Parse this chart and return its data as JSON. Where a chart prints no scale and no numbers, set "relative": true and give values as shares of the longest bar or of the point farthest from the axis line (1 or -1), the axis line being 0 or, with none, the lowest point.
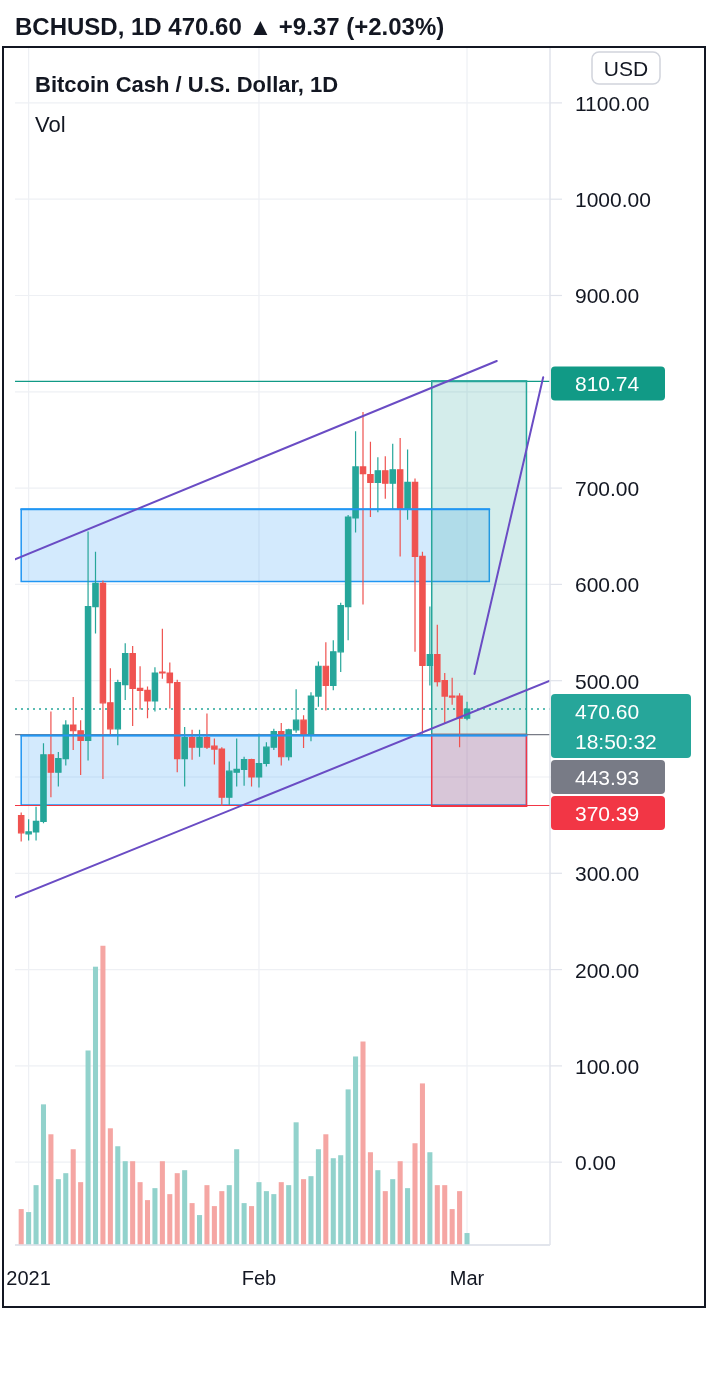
{
  "chart_data": [
    {
      "type": "candlestick",
      "title": "BCHUSD, 1D 470.60 ▲ +9.37 (+2.03%)",
      "subtitle": "Bitcoin Cash / U.S. Dollar, 1D",
      "ylabel": "USD",
      "x": [
        "2020-12-31",
        "2021-01-01",
        "2021-01-02",
        "2021-01-03",
        "2021-01-04",
        "2021-01-05",
        "2021-01-06",
        "2021-01-07",
        "2021-01-08",
        "2021-01-09",
        "2021-01-10",
        "2021-01-11",
        "2021-01-12",
        "2021-01-13",
        "2021-01-14",
        "2021-01-15",
        "2021-01-16",
        "2021-01-17",
        "2021-01-18",
        "2021-01-19",
        "2021-01-20",
        "2021-01-21",
        "2021-01-22",
        "2021-01-23",
        "2021-01-24",
        "2021-01-25",
        "2021-01-26",
        "2021-01-27",
        "2021-01-28",
        "2021-01-29",
        "2021-01-30",
        "2021-01-31",
        "2021-02-01",
        "2021-02-02",
        "2021-02-03",
        "2021-02-04",
        "2021-02-05",
        "2021-02-06",
        "2021-02-07",
        "2021-02-08",
        "2021-02-09",
        "2021-02-10",
        "2021-02-11",
        "2021-02-12",
        "2021-02-13",
        "2021-02-14",
        "2021-02-15",
        "2021-02-16",
        "2021-02-17",
        "2021-02-18",
        "2021-02-19",
        "2021-02-20",
        "2021-02-21",
        "2021-02-22",
        "2021-02-23",
        "2021-02-24",
        "2021-02-25",
        "2021-02-26",
        "2021-02-27",
        "2021-02-28",
        "2021-03-01"
      ],
      "ohlc": [
        [
          360,
          363,
          333,
          342
        ],
        [
          341,
          356,
          334,
          343
        ],
        [
          343,
          369,
          334,
          354
        ],
        [
          354,
          435,
          352,
          423
        ],
        [
          423,
          468,
          379,
          405
        ],
        [
          405,
          426,
          390,
          419
        ],
        [
          419,
          459,
          412,
          454
        ],
        [
          454,
          483,
          428,
          448
        ],
        [
          448,
          459,
          402,
          438
        ],
        [
          438,
          655,
          417,
          577
        ],
        [
          577,
          634,
          549,
          601
        ],
        [
          601,
          604,
          398,
          477
        ],
        [
          477,
          513,
          443,
          450
        ],
        [
          450,
          501,
          433,
          498
        ],
        [
          496,
          539,
          480,
          528
        ],
        [
          528,
          536,
          453,
          492
        ],
        [
          492,
          515,
          470,
          490
        ],
        [
          490,
          494,
          461,
          479
        ],
        [
          479,
          514,
          468,
          508
        ],
        [
          509,
          554,
          502,
          508
        ],
        [
          508,
          519,
          471,
          498
        ],
        [
          498,
          501,
          405,
          419
        ],
        [
          419,
          452,
          390,
          441
        ],
        [
          441,
          449,
          418,
          431
        ],
        [
          431,
          449,
          421,
          441
        ],
        [
          441,
          466,
          429,
          431
        ],
        [
          432,
          440,
          413,
          429
        ],
        [
          429,
          431,
          370,
          379
        ],
        [
          379,
          416,
          371,
          406
        ],
        [
          405,
          440,
          390,
          408
        ],
        [
          408,
          421,
          391,
          418
        ],
        [
          418,
          419,
          390,
          400
        ],
        [
          400,
          445,
          389,
          414
        ],
        [
          414,
          436,
          411,
          431
        ],
        [
          431,
          450,
          428,
          447
        ],
        [
          447,
          456,
          412,
          421
        ],
        [
          421,
          450,
          417,
          449
        ],
        [
          449,
          491,
          446,
          459
        ],
        [
          459,
          464,
          430,
          445
        ],
        [
          445,
          488,
          437,
          484
        ],
        [
          484,
          520,
          473,
          515
        ],
        [
          515,
          540,
          469,
          495
        ],
        [
          495,
          542,
          490,
          530
        ],
        [
          530,
          581,
          509,
          578
        ],
        [
          577,
          672,
          542,
          670
        ],
        [
          669,
          759,
          654,
          722
        ],
        [
          722,
          779,
          579,
          715
        ],
        [
          714,
          748,
          670,
          706
        ],
        [
          706,
          732,
          675,
          718
        ],
        [
          718,
          733,
          689,
          705
        ],
        [
          705,
          746,
          678,
          719
        ],
        [
          719,
          752,
          629,
          678
        ],
        [
          678,
          740,
          667,
          706
        ],
        [
          706,
          710,
          530,
          629
        ],
        [
          629,
          634,
          445,
          516
        ],
        [
          516,
          577,
          495,
          527
        ],
        [
          527,
          558,
          494,
          499
        ],
        [
          500,
          508,
          456,
          484
        ],
        [
          484,
          503,
          475,
          483
        ],
        [
          484,
          487,
          431,
          461
        ],
        [
          461,
          478,
          459,
          470.6
        ]
      ],
      "colors": [
        "#ef5350",
        "#26a69a",
        "#26a69a",
        "#26a69a",
        "#ef5350",
        "#26a69a",
        "#26a69a",
        "#ef5350",
        "#ef5350",
        "#26a69a",
        "#26a69a",
        "#ef5350",
        "#ef5350",
        "#26a69a",
        "#26a69a",
        "#ef5350",
        "#ef5350",
        "#ef5350",
        "#26a69a",
        "#ef5350",
        "#ef5350",
        "#ef5350",
        "#26a69a",
        "#ef5350",
        "#26a69a",
        "#ef5350",
        "#ef5350",
        "#ef5350",
        "#26a69a",
        "#26a69a",
        "#26a69a",
        "#ef5350",
        "#26a69a",
        "#26a69a",
        "#26a69a",
        "#ef5350",
        "#26a69a",
        "#26a69a",
        "#ef5350",
        "#26a69a",
        "#26a69a",
        "#ef5350",
        "#26a69a",
        "#26a69a",
        "#26a69a",
        "#26a69a",
        "#ef5350",
        "#ef5350",
        "#26a69a",
        "#ef5350",
        "#26a69a",
        "#ef5350",
        "#26a69a",
        "#ef5350",
        "#ef5350",
        "#26a69a",
        "#ef5350",
        "#ef5350",
        "#ef5350",
        "#ef5350",
        "#26a69a"
      ],
      "series": [
        {
          "type": "line",
          "x": [
            "2020-12-31",
            "2021-03-04"
          ],
          "values": [
            678,
            678
          ],
          "lower": [
            603,
            603
          ],
          "upper": [
            678,
            678
          ],
          "color": "#2196f3"
        },
        {
          "type": "line",
          "x": [
            "2020-12-31",
            "2021-03-09"
          ],
          "values": [
            443,
            443
          ],
          "lower": [
            371,
            371
          ],
          "upper": [
            443,
            443
          ],
          "color": "#2196f3"
        },
        {
          "type": "line",
          "x": [
            "2021-02-24T06:00",
            "2021-03-09"
          ],
          "values": [
            811,
            811
          ],
          "lower": [
            444,
            444
          ],
          "upper": [
            811,
            811
          ],
          "color": "#26a69a"
        },
        {
          "type": "line",
          "x": [
            "2021-02-24T06:00",
            "2021-03-09"
          ],
          "values": [
            370,
            370
          ],
          "lower": [
            370,
            370
          ],
          "upper": [
            444,
            444
          ],
          "color": "#f23645"
        },
        {
          "type": "line",
          "x": [
            "2020-12-30T04:00",
            "2021-03-05"
          ],
          "values": [
            626,
            832
          ],
          "color": "#6a4cc4"
        },
        {
          "type": "line",
          "x": [
            "2020-12-30T04:00",
            "2021-03-12T04:00"
          ],
          "values": [
            275,
            500
          ],
          "color": "#6a4cc4"
        },
        {
          "type": "line",
          "x": [
            "2021-03-02",
            "2021-03-11T06:00"
          ],
          "values": [
            507,
            815
          ],
          "color": "#6a4cc4"
        }
      ],
      "xlim": [
        "2020-12-30T04:00",
        "2021-03-12T04:00"
      ],
      "xticks": [
        {
          "value": "2021-01-01",
          "label": "2021"
        },
        {
          "value": "2021-02-01",
          "label": "Feb"
        },
        {
          "value": "2021-03-01",
          "label": "Mar"
        }
      ],
      "ylim": [
        -86,
        1157
      ],
      "yticks": [
        {
          "value": 0,
          "label": "0.00"
        },
        {
          "value": 100,
          "label": "100.00"
        },
        {
          "value": 200,
          "label": "200.00"
        },
        {
          "value": 300,
          "label": "300.00"
        },
        {
          "value": 400,
          "label": null
        },
        {
          "value": 500,
          "label": "500.00"
        },
        {
          "value": 600,
          "label": "600.00"
        },
        {
          "value": 700,
          "label": "700.00"
        },
        {
          "value": 800,
          "label": null
        },
        {
          "value": 900,
          "label": "900.00"
        },
        {
          "value": 1000,
          "label": "1000.00"
        },
        {
          "value": 1100,
          "label": "1100.00"
        }
      ],
      "grid": true,
      "ref_lines": [
        {
          "axis": "y",
          "value": 810.74,
          "label": "810.74",
          "color": "#119a86"
        },
        {
          "axis": "y",
          "value": 470.6,
          "label": "470.60",
          "color": "#26a69a",
          "line_style": "dotted"
        },
        {
          "axis": "y",
          "value": 443.93,
          "label": "443.93",
          "color": "#787b86"
        },
        {
          "axis": "y",
          "value": 370.39,
          "label": "370.39",
          "color": "#f23645"
        }
      ],
      "annotations": [
        "18:50:32"
      ]
    },
    {
      "type": "bar",
      "title": "Vol",
      "relative": true,
      "tick_labels": false,
      "x": [
        "2020-12-31",
        "2021-01-01",
        "2021-01-02",
        "2021-01-03",
        "2021-01-04",
        "2021-01-05",
        "2021-01-06",
        "2021-01-07",
        "2021-01-08",
        "2021-01-09",
        "2021-01-10",
        "2021-01-11",
        "2021-01-12",
        "2021-01-13",
        "2021-01-14",
        "2021-01-15",
        "2021-01-16",
        "2021-01-17",
        "2021-01-18",
        "2021-01-19",
        "2021-01-20",
        "2021-01-21",
        "2021-01-22",
        "2021-01-23",
        "2021-01-24",
        "2021-01-25",
        "2021-01-26",
        "2021-01-27",
        "2021-01-28",
        "2021-01-29",
        "2021-01-30",
        "2021-01-31",
        "2021-02-01",
        "2021-02-02",
        "2021-02-03",
        "2021-02-04",
        "2021-02-05",
        "2021-02-06",
        "2021-02-07",
        "2021-02-08",
        "2021-02-09",
        "2021-02-10",
        "2021-02-11",
        "2021-02-12",
        "2021-02-13",
        "2021-02-14",
        "2021-02-15",
        "2021-02-16",
        "2021-02-17",
        "2021-02-18",
        "2021-02-19",
        "2021-02-20",
        "2021-02-21",
        "2021-02-22",
        "2021-02-23",
        "2021-02-24",
        "2021-02-25",
        "2021-02-26",
        "2021-02-27",
        "2021-02-28",
        "2021-03-01"
      ],
      "values": [
        0.12,
        0.11,
        0.2,
        0.47,
        0.37,
        0.22,
        0.24,
        0.32,
        0.21,
        0.65,
        0.93,
        1,
        0.39,
        0.33,
        0.28,
        0.28,
        0.21,
        0.15,
        0.19,
        0.28,
        0.17,
        0.24,
        0.25,
        0.14,
        0.1,
        0.2,
        0.13,
        0.18,
        0.2,
        0.32,
        0.14,
        0.13,
        0.21,
        0.18,
        0.17,
        0.21,
        0.2,
        0.41,
        0.22,
        0.23,
        0.32,
        0.37,
        0.29,
        0.3,
        0.52,
        0.63,
        0.68,
        0.31,
        0.25,
        0.18,
        0.22,
        0.28,
        0.19,
        0.34,
        0.54,
        0.31,
        0.2,
        0.2,
        0.12,
        0.18,
        0.04
      ],
      "colors": [
        "#f5a6a3",
        "#92d2cc",
        "#92d2cc",
        "#92d2cc",
        "#f5a6a3",
        "#92d2cc",
        "#92d2cc",
        "#f5a6a3",
        "#f5a6a3",
        "#92d2cc",
        "#92d2cc",
        "#f5a6a3",
        "#f5a6a3",
        "#92d2cc",
        "#92d2cc",
        "#f5a6a3",
        "#f5a6a3",
        "#f5a6a3",
        "#92d2cc",
        "#f5a6a3",
        "#f5a6a3",
        "#f5a6a3",
        "#92d2cc",
        "#f5a6a3",
        "#92d2cc",
        "#f5a6a3",
        "#f5a6a3",
        "#f5a6a3",
        "#92d2cc",
        "#92d2cc",
        "#92d2cc",
        "#f5a6a3",
        "#92d2cc",
        "#92d2cc",
        "#92d2cc",
        "#f5a6a3",
        "#92d2cc",
        "#92d2cc",
        "#f5a6a3",
        "#92d2cc",
        "#92d2cc",
        "#f5a6a3",
        "#92d2cc",
        "#92d2cc",
        "#92d2cc",
        "#92d2cc",
        "#f5a6a3",
        "#f5a6a3",
        "#92d2cc",
        "#f5a6a3",
        "#92d2cc",
        "#f5a6a3",
        "#92d2cc",
        "#f5a6a3",
        "#f5a6a3",
        "#92d2cc",
        "#f5a6a3",
        "#f5a6a3",
        "#f5a6a3",
        "#f5a6a3",
        "#92d2cc"
      ],
      "xlim": [
        "2020-12-30T04:00",
        "2021-03-12T04:00"
      ]
    }
  ]
}
